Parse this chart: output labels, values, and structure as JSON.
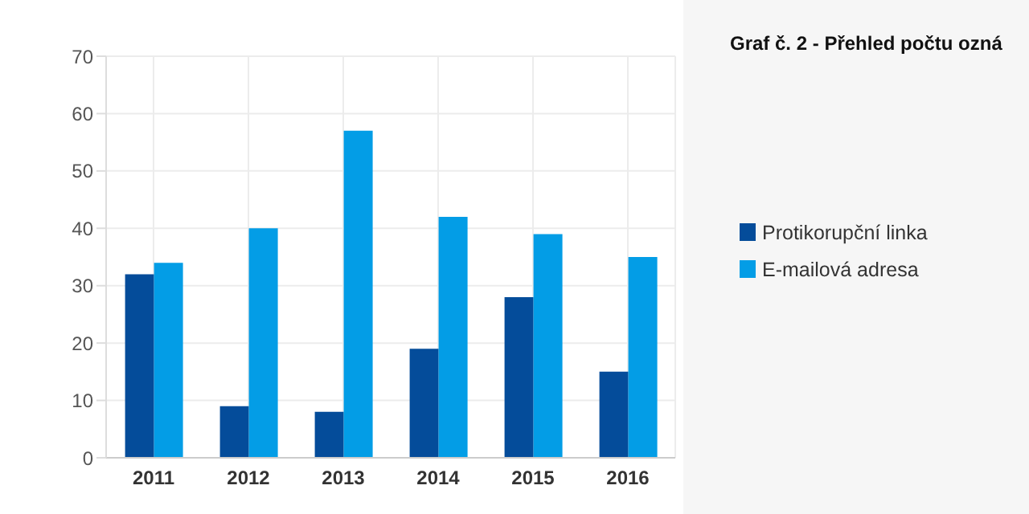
{
  "chart_data": {
    "type": "bar",
    "title": "Graf č. 2 - Přehled počtu ozná",
    "categories": [
      "2011",
      "2012",
      "2013",
      "2014",
      "2015",
      "2016"
    ],
    "series": [
      {
        "name": "Protikorupční linka",
        "color": "#044c9a",
        "values": [
          32,
          9,
          8,
          19,
          28,
          15
        ]
      },
      {
        "name": "E-mailová adresa",
        "color": "#039de6",
        "values": [
          34,
          40,
          57,
          42,
          39,
          35
        ]
      }
    ],
    "ylim": [
      0,
      70
    ],
    "yticks": [
      0,
      10,
      20,
      30,
      40,
      50,
      60,
      70
    ],
    "grid": true,
    "legend": "right"
  }
}
